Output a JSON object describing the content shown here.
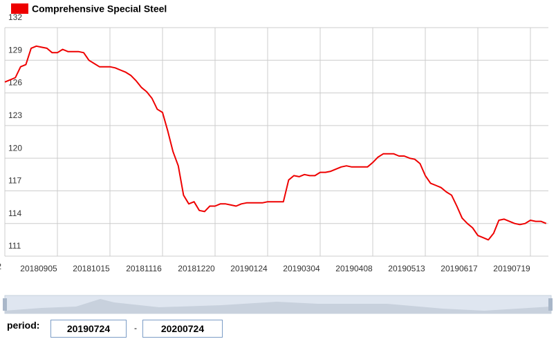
{
  "chart_data": {
    "type": "line",
    "legend_label": "Comprehensive Special Steel",
    "categories": [
      null,
      null,
      null,
      null,
      null,
      null,
      null,
      null,
      null,
      null,
      "20180905",
      null,
      null,
      null,
      null,
      null,
      null,
      null,
      null,
      null,
      "20181015",
      null,
      null,
      null,
      null,
      null,
      null,
      null,
      null,
      null,
      "20181116",
      null,
      null,
      null,
      null,
      null,
      null,
      null,
      null,
      null,
      "20181220",
      null,
      null,
      null,
      null,
      null,
      null,
      null,
      null,
      null,
      "20190124",
      null,
      null,
      null,
      null,
      null,
      null,
      null,
      null,
      null,
      "20190304",
      null,
      null,
      null,
      null,
      null,
      null,
      null,
      null,
      null,
      "20190408",
      null,
      null,
      null,
      null,
      null,
      null,
      null,
      null,
      null,
      "20190513",
      null,
      null,
      null,
      null,
      null,
      null,
      null,
      null,
      null,
      "20190617",
      null,
      null,
      null,
      null,
      null,
      null,
      null,
      null,
      null,
      "20190719",
      null,
      null,
      null
    ],
    "series": [
      {
        "name": "Comprehensive Special Steel",
        "color": "#ee0000",
        "values": [
          127.0,
          127.2,
          127.4,
          128.4,
          128.6,
          130.1,
          130.3,
          130.2,
          130.1,
          129.7,
          129.7,
          130.0,
          129.8,
          129.8,
          129.8,
          129.7,
          129.0,
          128.7,
          128.4,
          128.4,
          128.4,
          128.3,
          128.1,
          127.9,
          127.6,
          127.1,
          126.5,
          126.1,
          125.5,
          124.5,
          124.2,
          122.5,
          120.6,
          119.3,
          116.6,
          115.8,
          116.0,
          115.2,
          115.1,
          115.6,
          115.6,
          115.8,
          115.8,
          115.7,
          115.6,
          115.8,
          115.9,
          115.9,
          115.9,
          115.9,
          116.0,
          116.0,
          116.0,
          116.0,
          118.0,
          118.4,
          118.3,
          118.5,
          118.4,
          118.4,
          118.7,
          118.7,
          118.8,
          119.0,
          119.2,
          119.3,
          119.2,
          119.2,
          119.2,
          119.2,
          119.6,
          120.1,
          120.4,
          120.4,
          120.4,
          120.2,
          120.2,
          120.0,
          119.9,
          119.5,
          118.4,
          117.7,
          117.5,
          117.3,
          116.9,
          116.6,
          115.6,
          114.5,
          114.0,
          113.6,
          112.9,
          112.7,
          112.5,
          113.1,
          114.3,
          114.4,
          114.2,
          114.0,
          113.9,
          114.0,
          114.3,
          114.2,
          114.2,
          114.0
        ]
      }
    ],
    "ylim": [
      111,
      132
    ],
    "yticks": [
      111,
      114,
      117,
      120,
      123,
      126,
      129,
      132
    ],
    "grid": true
  },
  "controls": {
    "period_label": "period:",
    "start": "20190724",
    "separator": "-",
    "end": "20200724"
  }
}
